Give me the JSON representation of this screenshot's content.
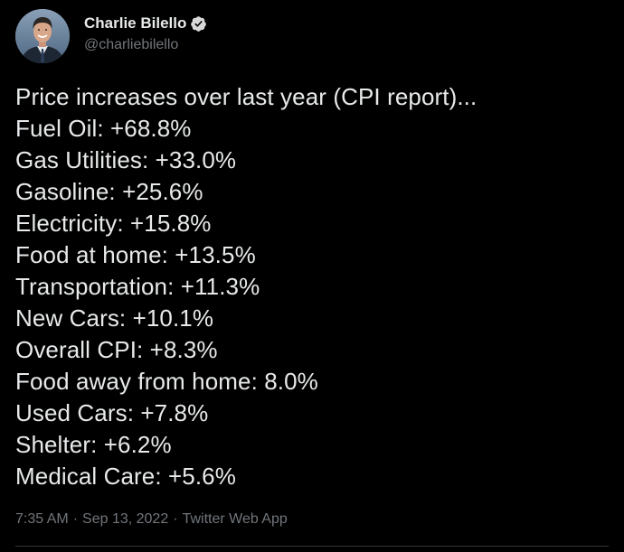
{
  "author": {
    "name": "Charlie Bilello",
    "handle": "@charliebilello",
    "verified": true,
    "avatar_icon": "profile-photo"
  },
  "tweet": {
    "intro": "Price increases over last year (CPI report)...",
    "items": [
      "Fuel Oil: +68.8%",
      "Gas Utilities: +33.0%",
      "Gasoline: +25.6%",
      "Electricity: +15.8%",
      "Food at home: +13.5%",
      "Transportation: +11.3%",
      "New Cars: +10.1%",
      "Overall CPI: +8.3%",
      "Food away from home: 8.0%",
      "Used Cars: +7.8%",
      "Shelter: +6.2%",
      "Medical Care: +5.6%"
    ]
  },
  "meta": {
    "time": "7:35 AM",
    "date": "Sep 13, 2022",
    "source": "Twitter Web App",
    "separator": "·"
  },
  "colors": {
    "background": "#000000",
    "text": "#e7e9ea",
    "secondary": "#71767b",
    "verified_badge": "#d9d9d9"
  }
}
